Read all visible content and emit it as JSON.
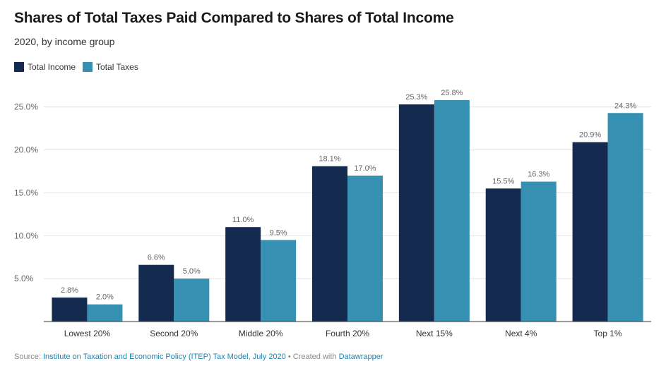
{
  "title": "Shares of Total Taxes Paid Compared to Shares of Total Income",
  "subtitle": "2020, by income group",
  "footer": {
    "source_label": "Source: ",
    "source_link": "Institute on Taxation and Economic Policy (ITEP) Tax Model, July 2020",
    "created_label": " • Created with ",
    "created_link": "Datawrapper"
  },
  "colors": {
    "income": "#152a4f",
    "taxes": "#3590b1",
    "grid": "#e2e2e2",
    "axis": "#333333",
    "label": "#666666"
  },
  "chart_data": {
    "type": "bar",
    "categories": [
      "Lowest 20%",
      "Second 20%",
      "Middle 20%",
      "Fourth 20%",
      "Next 15%",
      "Next 4%",
      "Top 1%"
    ],
    "series": [
      {
        "name": "Total Income",
        "values": [
          2.8,
          6.6,
          11.0,
          18.1,
          25.3,
          15.5,
          20.9
        ],
        "labels": [
          "2.8%",
          "6.6%",
          "11.0%",
          "18.1%",
          "25.3%",
          "15.5%",
          "20.9%"
        ]
      },
      {
        "name": "Total Taxes",
        "values": [
          2.0,
          5.0,
          9.5,
          17.0,
          25.8,
          16.3,
          24.3
        ],
        "labels": [
          "2.0%",
          "5.0%",
          "9.5%",
          "17.0%",
          "25.8%",
          "16.3%",
          "24.3%"
        ]
      }
    ],
    "y_ticks": [
      5,
      10,
      15,
      20,
      25
    ],
    "y_tick_labels": [
      "5.0%",
      "10.0%",
      "15.0%",
      "20.0%",
      "25.0%"
    ],
    "ylim": [
      0,
      25.8
    ],
    "grid": true,
    "legend": "top-left"
  }
}
